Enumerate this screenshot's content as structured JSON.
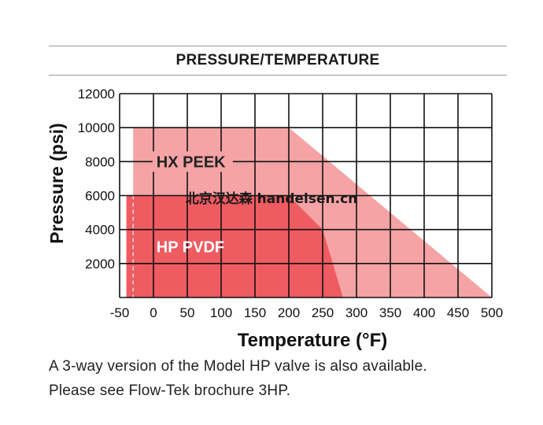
{
  "heading": "PRESSURE/TEMPERATURE",
  "watermark": "北京汉达森 handelsen.cn",
  "notes": [
    "A 3-way version of the Model HP valve is also available.",
    "Please see Flow-Tek brochure 3HP."
  ],
  "colors": {
    "hx_peek": "#f5a3a5",
    "hp_pvdf": "#ee5b61",
    "grid": "#111111",
    "label_light": "#ffffff",
    "label_dark": "#222222"
  },
  "chart_data": {
    "type": "area",
    "title": "PRESSURE/TEMPERATURE",
    "xlabel": "Temperature (°F)",
    "ylabel": "Pressure (psi)",
    "xlim": [
      -50,
      500
    ],
    "ylim": [
      0,
      12000
    ],
    "xticks": [
      -50,
      0,
      50,
      100,
      150,
      200,
      250,
      300,
      350,
      400,
      450,
      500
    ],
    "xtick_labels": [
      "-50",
      "0",
      "50",
      "100",
      "150",
      "200",
      "250",
      "300",
      "350",
      "400",
      "450",
      "500"
    ],
    "yticks": [
      2000,
      4000,
      6000,
      8000,
      10000,
      12000
    ],
    "ytick_labels": [
      "2000",
      "4000",
      "6000",
      "8000",
      "10000",
      "12000"
    ],
    "grid": true,
    "series": [
      {
        "name": "HX PEEK",
        "color": "#f5a3a5",
        "points": [
          [
            -30,
            0
          ],
          [
            -30,
            10000
          ],
          [
            200,
            10000
          ],
          [
            500,
            0
          ]
        ]
      },
      {
        "name": "HP PVDF",
        "color": "#ee5b61",
        "points": [
          [
            -40,
            0
          ],
          [
            -40,
            6000
          ],
          [
            200,
            6000
          ],
          [
            250,
            4000
          ],
          [
            280,
            0
          ]
        ]
      }
    ],
    "annotations": [
      {
        "text": "HX PEEK",
        "x": 30,
        "y": 8000
      },
      {
        "text": "HP PVDF",
        "x": 30,
        "y": 3000
      }
    ],
    "reference_lines": [
      {
        "x": -30,
        "style": "dashed"
      }
    ]
  }
}
